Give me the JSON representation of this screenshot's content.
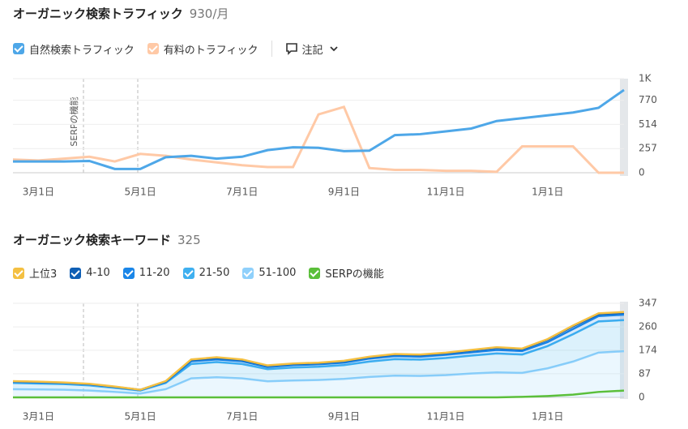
{
  "chart_data": [
    {
      "type": "line",
      "title": "オーガニック検索トラフィック",
      "subtitle": "930/月",
      "notes_label": "注記",
      "annotation": "SERPの機能",
      "categories": [
        null,
        "3月1日",
        null,
        null,
        null,
        "5月1日",
        null,
        null,
        null,
        "7月1日",
        null,
        null,
        null,
        "9月1日",
        null,
        null,
        null,
        "11月1日",
        null,
        null,
        null,
        "1月1日",
        null,
        null,
        null
      ],
      "series": [
        {
          "name": "自然検索トラフィック",
          "color": "#4ea7e8",
          "values": [
            120,
            120,
            120,
            125,
            40,
            40,
            165,
            180,
            150,
            170,
            240,
            270,
            265,
            230,
            235,
            400,
            410,
            440,
            470,
            550,
            580,
            610,
            640,
            690,
            880
          ]
        },
        {
          "name": "有料のトラフィック",
          "color": "#ffc9a6",
          "values": [
            140,
            130,
            150,
            170,
            120,
            200,
            180,
            140,
            110,
            80,
            60,
            60,
            620,
            700,
            50,
            30,
            30,
            20,
            20,
            10,
            280,
            280,
            280,
            0,
            0
          ]
        }
      ],
      "ylim": [
        0,
        1000
      ],
      "yticks": [
        0,
        257,
        514,
        770,
        {
          "value": 1000,
          "label": "1K"
        }
      ],
      "grid": true
    },
    {
      "type": "stacked_area",
      "title": "オーガニック検索キーワード",
      "subtitle": "325",
      "categories": [
        null,
        "3月1日",
        null,
        null,
        null,
        "5月1日",
        null,
        null,
        null,
        "7月1日",
        null,
        null,
        null,
        "9月1日",
        null,
        null,
        null,
        "11月1日",
        null,
        null,
        null,
        "1月1日",
        null,
        null,
        null
      ],
      "series": [
        {
          "name": "上位3",
          "color": "#f4c042",
          "values": [
            1,
            1,
            1,
            1,
            1,
            0,
            1,
            2,
            3,
            2,
            2,
            2,
            2,
            2,
            2,
            2,
            2,
            2,
            2,
            2,
            2,
            2,
            3,
            3,
            3
          ]
        },
        {
          "name": "4-10",
          "color": "#0f5fb5",
          "values": [
            2,
            2,
            1,
            1,
            1,
            1,
            2,
            5,
            5,
            5,
            4,
            4,
            4,
            5,
            5,
            6,
            6,
            6,
            7,
            8,
            7,
            9,
            10,
            7,
            7
          ]
        },
        {
          "name": "11-20",
          "color": "#1a86e8",
          "values": [
            4,
            4,
            4,
            4,
            3,
            2,
            4,
            10,
            10,
            10,
            8,
            9,
            9,
            9,
            11,
            11,
            11,
            12,
            12,
            13,
            13,
            15,
            19,
            20,
            20
          ]
        },
        {
          "name": "21-50",
          "color": "#3fb0f0",
          "values": [
            23,
            22,
            21,
            19,
            15,
            11,
            23,
            53,
            56,
            53,
            45,
            48,
            49,
            51,
            57,
            61,
            60,
            63,
            66,
            70,
            68,
            82,
            101,
            115,
            115
          ]
        },
        {
          "name": "51-100",
          "color": "#8fd0fb",
          "values": [
            30,
            29,
            28,
            25,
            20,
            14,
            30,
            70,
            74,
            70,
            59,
            62,
            64,
            68,
            75,
            80,
            79,
            82,
            88,
            92,
            90,
            107,
            132,
            165,
            170
          ]
        },
        {
          "name": "SERPの機能",
          "color": "#5bbf3a",
          "stacked": false,
          "values": [
            0,
            0,
            0,
            0,
            0,
            0,
            0,
            0,
            0,
            0,
            0,
            0,
            0,
            0,
            0,
            0,
            0,
            0,
            0,
            0,
            2,
            5,
            10,
            20,
            25
          ]
        }
      ],
      "ylim": [
        0,
        347
      ],
      "yticks": [
        0,
        87,
        174,
        260,
        347
      ],
      "grid": true
    }
  ]
}
